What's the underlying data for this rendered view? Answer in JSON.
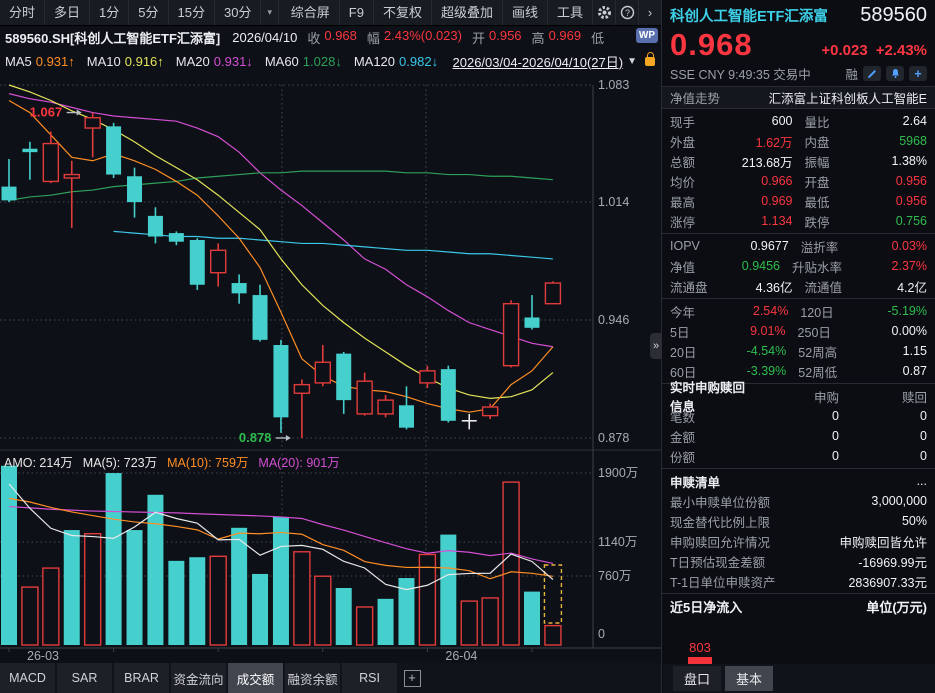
{
  "toolbar": {
    "left_items": [
      "分时",
      "多日",
      "1分",
      "5分",
      "15分",
      "30分"
    ],
    "dropdown_caret": "▾",
    "right_items": [
      "综合屏",
      "F9",
      "不复权",
      "超级叠加",
      "画线",
      "工具"
    ],
    "chevron": "›",
    "help": "?"
  },
  "info_bar": {
    "code_title": "589560.SH[科创人工智能ETF汇添富]",
    "date": "2026/04/10",
    "fields": [
      {
        "label": "收",
        "value": "0.968",
        "color": "#fb3640"
      },
      {
        "label": "幅",
        "value": "2.43%(0.023)",
        "color": "#fb3640"
      },
      {
        "label": "开",
        "value": "0.956",
        "color": "#fb3640"
      },
      {
        "label": "高",
        "value": "0.969",
        "color": "#fb3640"
      },
      {
        "label": "低",
        "value": "",
        "color": "#fb3640"
      }
    ],
    "wp_badge": "WP"
  },
  "ma_legend": {
    "items": [
      {
        "name": "MA5",
        "value": "0.931↑",
        "color": "#ff8e24"
      },
      {
        "name": "MA10",
        "value": "0.916↑",
        "color": "#e3e35a"
      },
      {
        "name": "MA20",
        "value": "0.931↓",
        "color": "#d44fd4"
      },
      {
        "name": "MA60",
        "value": "1.028↓",
        "color": "#2fa05a"
      },
      {
        "name": "MA120",
        "value": "0.982↓",
        "color": "#3bc7e8"
      }
    ],
    "range": "2026/03/04-2026/04/10(27日)",
    "caret": "▼"
  },
  "chart_data": {
    "type": "candlestick+volume",
    "title": "589560 daily candles 2026/03/04-2026/04/10",
    "y_axis_price": [
      "1.083",
      "1.014",
      "0.946",
      "0.878"
    ],
    "price_range": [
      0.878,
      1.083
    ],
    "y_axis_volume": [
      "1900万",
      "1140万",
      "760万",
      "0"
    ],
    "x_labels": [
      {
        "text": "26-03",
        "index": 0
      },
      {
        "text": "26-04",
        "index": 20
      }
    ],
    "annotations": [
      {
        "text": "1.067",
        "price": 1.067,
        "color": "#fb3640",
        "at_index": 4
      },
      {
        "text": "0.878",
        "price": 0.878,
        "color": "#2ebd4e",
        "at_index": 14
      }
    ],
    "candles_ochl": [
      [
        1.024,
        1.016,
        1.04,
        1.015
      ],
      [
        1.046,
        1.044,
        1.05,
        1.028
      ],
      [
        1.027,
        1.049,
        1.056,
        1.026
      ],
      [
        1.029,
        1.031,
        1.039,
        1.0
      ],
      [
        1.058,
        1.064,
        1.067,
        1.041
      ],
      [
        1.059,
        1.031,
        1.061,
        1.029
      ],
      [
        1.03,
        1.015,
        1.035,
        1.006
      ],
      [
        1.007,
        0.995,
        1.012,
        0.991
      ],
      [
        0.997,
        0.992,
        0.998,
        0.99
      ],
      [
        0.993,
        0.967,
        0.994,
        0.964
      ],
      [
        0.974,
        0.987,
        0.991,
        0.966
      ],
      [
        0.968,
        0.962,
        0.973,
        0.956
      ],
      [
        0.961,
        0.935,
        0.967,
        0.934
      ],
      [
        0.932,
        0.89,
        0.935,
        0.881
      ],
      [
        0.904,
        0.909,
        0.912,
        0.878
      ],
      [
        0.91,
        0.922,
        0.932,
        0.908
      ],
      [
        0.927,
        0.9,
        0.928,
        0.892
      ],
      [
        0.892,
        0.911,
        0.916,
        0.891
      ],
      [
        0.892,
        0.9,
        0.903,
        0.89
      ],
      [
        0.897,
        0.884,
        0.908,
        0.883
      ],
      [
        0.91,
        0.917,
        0.92,
        0.907
      ],
      [
        0.918,
        0.888,
        0.92,
        0.887
      ],
      [
        0.888,
        0.888,
        0.892,
        0.883
      ],
      [
        0.891,
        0.896,
        0.898,
        0.889
      ],
      [
        0.92,
        0.956,
        0.958,
        0.919
      ],
      [
        0.948,
        0.942,
        0.961,
        0.941
      ],
      [
        0.956,
        0.968,
        0.969,
        0.956
      ]
    ],
    "ma5": [
      1.074,
      1.067,
      1.054,
      1.041,
      1.039,
      1.043,
      1.039,
      1.034,
      1.027,
      1.019,
      1.007,
      0.994,
      0.977,
      0.951,
      0.924,
      0.914,
      0.908,
      0.906,
      0.905,
      0.902,
      0.898,
      0.895,
      0.893,
      0.895,
      0.909,
      0.917,
      0.931
    ],
    "ma10": [
      1.083,
      1.079,
      1.074,
      1.068,
      1.063,
      1.057,
      1.05,
      1.042,
      1.035,
      1.028,
      1.019,
      1.009,
      0.999,
      0.982,
      0.967,
      0.955,
      0.945,
      0.936,
      0.928,
      0.92,
      0.913,
      0.907,
      0.903,
      0.901,
      0.902,
      0.906,
      0.916
    ],
    "ma20": [
      1.078,
      1.075,
      1.073,
      1.07,
      1.067,
      1.065,
      1.064,
      1.063,
      1.062,
      1.058,
      1.053,
      1.044,
      1.032,
      1.022,
      1.013,
      1.003,
      0.993,
      0.982,
      0.976,
      0.967,
      0.96,
      0.952,
      0.945,
      0.941,
      0.937,
      0.933,
      0.931
    ],
    "ma60": [
      1.016,
      1.018,
      1.019,
      1.021,
      1.022,
      1.024,
      1.025,
      1.026,
      1.027,
      1.029,
      1.03,
      1.031,
      1.032,
      1.032,
      1.033,
      1.033,
      1.033,
      1.033,
      1.033,
      1.032,
      1.032,
      1.031,
      1.031,
      1.03,
      1.03,
      1.029,
      1.028
    ],
    "ma120": [
      null,
      null,
      null,
      null,
      null,
      0.998,
      0.997,
      0.996,
      0.995,
      0.995,
      0.994,
      0.994,
      0.993,
      0.992,
      0.991,
      0.991,
      0.99,
      0.989,
      0.988,
      0.987,
      0.987,
      0.986,
      0.985,
      0.985,
      0.984,
      0.983,
      0.982
    ],
    "volume_legend": [
      {
        "text": "AMO: 214万",
        "color": "#e8e8e8"
      },
      {
        "text": "MA(5): 723万",
        "color": "#e8e8e8"
      },
      {
        "text": "MA(10): 759万",
        "color": "#ff8e24"
      },
      {
        "text": "MA(20): 901万",
        "color": "#d44fd4"
      }
    ],
    "volumes_wan": [
      1980,
      640,
      850,
      1270,
      1230,
      1900,
      1270,
      1660,
      930,
      970,
      980,
      1295,
      785,
      1415,
      1030,
      760,
      630,
      420,
      510,
      740,
      1000,
      1220,
      485,
      520,
      1800,
      590,
      214
    ],
    "vma5": [
      1780,
      1510,
      1290,
      1210,
      1198,
      1178,
      1304,
      1466,
      1398,
      1346,
      1162,
      1167,
      992,
      1089,
      1101,
      1057,
      924,
      851,
      670,
      612,
      660,
      778,
      791,
      793,
      1005,
      923,
      723
    ],
    "vma10": [
      1620,
      1580,
      1520,
      1470,
      1430,
      1390,
      1360,
      1340,
      1310,
      1272,
      1170,
      1236,
      1229,
      1244,
      1224,
      1110,
      1046,
      922,
      880,
      857,
      859,
      851,
      821,
      732,
      809,
      792,
      759
    ],
    "vma20": [
      1530,
      1515,
      1500,
      1490,
      1480,
      1475,
      1470,
      1465,
      1460,
      1450,
      1442,
      1434,
      1426,
      1415,
      1398,
      1330,
      1270,
      1200,
      1130,
      1064,
      1014,
      1043,
      1025,
      988,
      1016,
      951,
      901
    ],
    "colors": {
      "up": "#e23b3b",
      "down": "#45d0ce",
      "doji": "#ececec",
      "ma5": "#ff8e24",
      "ma10": "#e3e35a",
      "ma20": "#d44fd4",
      "ma60": "#2fa05a",
      "ma120": "#3bc7e8",
      "vma5": "#e8e8e8",
      "vma10": "#ff8e24",
      "vma20": "#d44fd4",
      "grid": "#454a55",
      "axis": "#3a3f48",
      "label": "#a6abb4",
      "forecast_box": "#e8b33a"
    }
  },
  "bottom_tabs": {
    "items": [
      "MACD",
      "SAR",
      "BRAR",
      "资金流向",
      "成交额",
      "融资余额",
      "RSI"
    ],
    "active_index": 4,
    "add_icon": "+"
  },
  "panel": {
    "name": "科创人工智能ETF汇添富",
    "code": "589560",
    "price": "0.968",
    "change": "+0.023",
    "change_pct": "+2.43%",
    "sub_line": "SSE   CNY   9:49:35   交易中",
    "margin_flag": "融",
    "nav_row": {
      "label": "净值走势",
      "value": "汇添富上证科创板人工智能E"
    },
    "sections": [
      {
        "type": "pairs",
        "rows": [
          [
            "现手",
            "600",
            "w",
            "量比",
            "2.64",
            "w"
          ],
          [
            "外盘",
            "1.62万",
            "r",
            "内盘",
            "5968",
            "g"
          ],
          [
            "总额",
            "213.68万",
            "w",
            "振幅",
            "1.38%",
            "w"
          ],
          [
            "均价",
            "0.966",
            "r",
            "开盘",
            "0.956",
            "r"
          ],
          [
            "最高",
            "0.969",
            "r",
            "最低",
            "0.956",
            "r"
          ],
          [
            "涨停",
            "1.134",
            "r",
            "跌停",
            "0.756",
            "g"
          ]
        ]
      },
      {
        "type": "pairs",
        "rows": [
          [
            "IOPV",
            "0.9677",
            "w",
            "溢折率",
            "0.03%",
            "r"
          ],
          [
            "净值",
            "0.9456",
            "g",
            "升贴水率",
            "2.37%",
            "r"
          ],
          [
            "流通盘",
            "4.36亿",
            "w",
            "流通值",
            "4.2亿",
            "w"
          ]
        ]
      },
      {
        "type": "pairs",
        "rows": [
          [
            "今年",
            "2.54%",
            "r",
            "120日",
            "-5.19%",
            "g"
          ],
          [
            "5日",
            "9.01%",
            "r",
            "250日",
            "0.00%",
            "w"
          ],
          [
            "20日",
            "-4.54%",
            "g",
            "52周高",
            "1.15",
            "w"
          ],
          [
            "60日",
            "-3.39%",
            "g",
            "52周低",
            "0.87",
            "w"
          ]
        ]
      },
      {
        "type": "table",
        "header": [
          "实时申购赎回信息",
          "申购",
          "赎回"
        ],
        "rows": [
          [
            "笔数",
            "0",
            "0"
          ],
          [
            "金额",
            "0",
            "0"
          ],
          [
            "份额",
            "0",
            "0"
          ]
        ]
      },
      {
        "type": "kv",
        "header": [
          "申赎清单",
          "..."
        ],
        "rows": [
          [
            "最小申赎单位份额",
            "3,000,000"
          ],
          [
            "现金替代比例上限",
            "50%"
          ],
          [
            "申购赎回允许情况",
            "申购赎回皆允许"
          ],
          [
            "T日预估现金差额",
            "-16969.99元"
          ],
          [
            "T-1日单位申赎资产",
            "2836907.33元"
          ]
        ]
      }
    ],
    "flow": {
      "title": "近5日净流入",
      "unit": "单位(万元)",
      "bars": [
        {
          "label": "803",
          "dir": "pos",
          "h": 45
        },
        {
          "label": "",
          "dir": "neg",
          "h": 3
        },
        {
          "label": "",
          "dir": "neg",
          "h": 3
        },
        {
          "label": "",
          "dir": "neg",
          "h": 3
        },
        {
          "label": "",
          "dir": "neg",
          "h": 3
        }
      ],
      "pos_color": "#f5333b",
      "neg_color": "#27c24a"
    },
    "tabs": [
      "盘口",
      "基本"
    ],
    "active_tab_index": 1,
    "collapse_glyph": "»"
  }
}
